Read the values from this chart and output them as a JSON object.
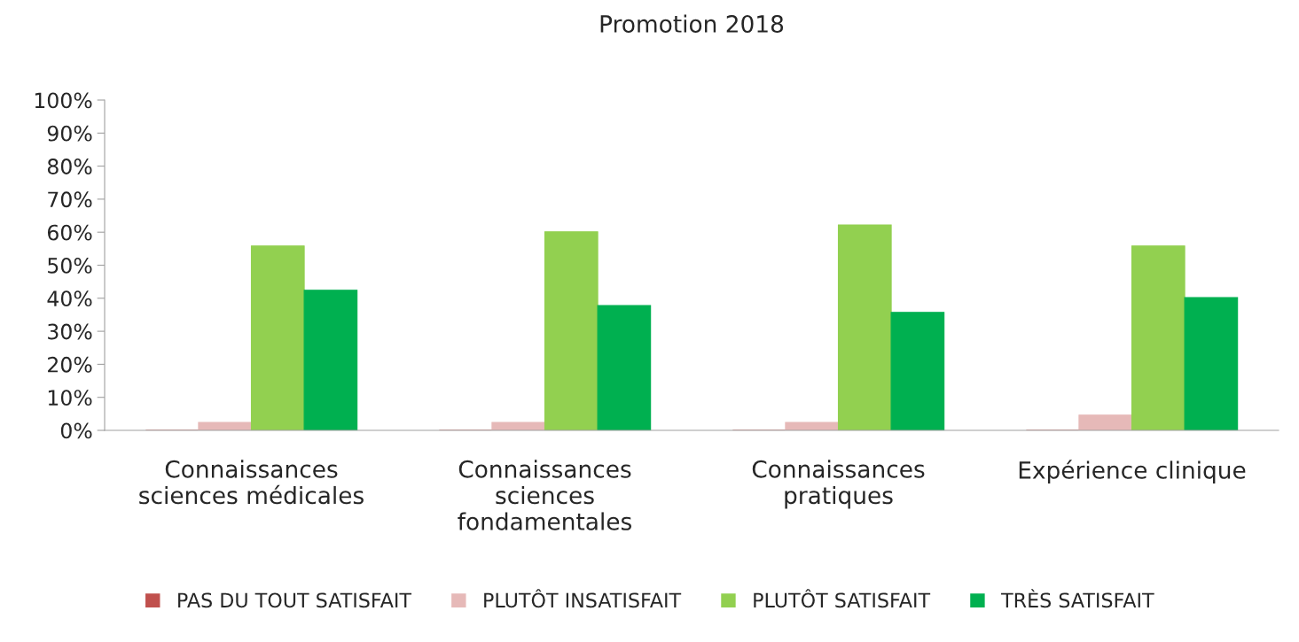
{
  "chart_data": {
    "type": "bar",
    "title": "Promotion 2018",
    "categories": [
      "Connaissances\nsciences médicales",
      "Connaissances\nsciences\nfondamentales",
      "Connaissances\npratiques",
      "Expérience clinique"
    ],
    "series": [
      {
        "name": "PAS DU TOUT SATISFAIT",
        "color": "#c0504d",
        "values": [
          0,
          0,
          0,
          0
        ]
      },
      {
        "name": "PLUTÔT INSATISFAIT",
        "color": "#e6b9b8",
        "values": [
          2.4,
          2.4,
          2.4,
          4.6
        ]
      },
      {
        "name": "PLUTÔT SATISFAIT",
        "color": "#92d050",
        "values": [
          55.8,
          60.1,
          62.2,
          55.8
        ]
      },
      {
        "name": "TRÈS SATISFAIT",
        "color": "#00b050",
        "values": [
          42.4,
          37.8,
          35.7,
          40.2
        ]
      }
    ],
    "ylim": [
      0,
      100
    ],
    "yticks": [
      {
        "value": 0,
        "label": "0%"
      },
      {
        "value": 10,
        "label": "10%"
      },
      {
        "value": 20,
        "label": "20%"
      },
      {
        "value": 30,
        "label": "30%"
      },
      {
        "value": 40,
        "label": "40%"
      },
      {
        "value": 50,
        "label": "50%"
      },
      {
        "value": 60,
        "label": "60%"
      },
      {
        "value": 70,
        "label": "70%"
      },
      {
        "value": 80,
        "label": "80%"
      },
      {
        "value": 90,
        "label": "90%"
      },
      {
        "value": 100,
        "label": "100%"
      }
    ],
    "grid": false,
    "legend": "bottom"
  }
}
